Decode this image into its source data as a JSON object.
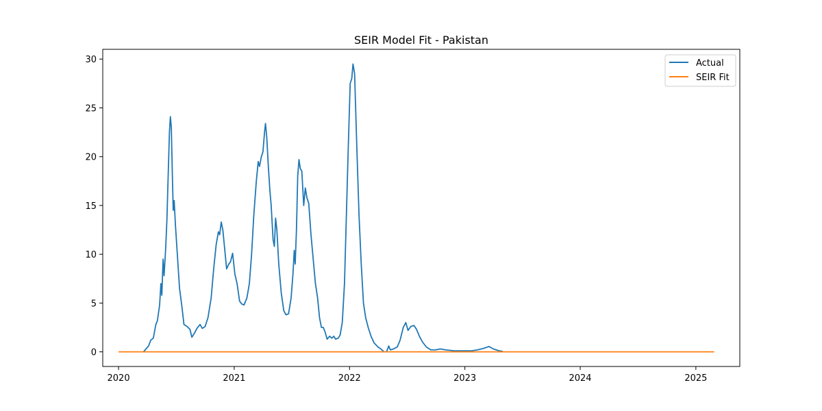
{
  "chart_data": {
    "type": "line",
    "title": "SEIR Model Fit - Pakistan",
    "xlabel": "",
    "ylabel": "",
    "x_axis": {
      "type": "date",
      "min": "2019-11-12",
      "max": "2025-05-20",
      "ticks": [
        "2020-01-01",
        "2021-01-01",
        "2022-01-01",
        "2023-01-01",
        "2024-01-01",
        "2025-01-01"
      ],
      "tick_labels": [
        "2020",
        "2021",
        "2022",
        "2023",
        "2024",
        "2025"
      ]
    },
    "y_axis": {
      "min": -1.5,
      "max": 31,
      "ticks": [
        0,
        5,
        10,
        15,
        20,
        25,
        30
      ],
      "tick_labels": [
        "0",
        "5",
        "10",
        "15",
        "20",
        "25",
        "30"
      ]
    },
    "grid": false,
    "legend": {
      "placement": "top-right",
      "entries": [
        "Actual",
        "SEIR Fit"
      ]
    },
    "series": [
      {
        "name": "Actual",
        "color": "#1f77b4",
        "points": [
          [
            "2020-03-20",
            0.0
          ],
          [
            "2020-03-28",
            0.3
          ],
          [
            "2020-04-05",
            0.6
          ],
          [
            "2020-04-12",
            1.2
          ],
          [
            "2020-04-20",
            1.4
          ],
          [
            "2020-04-28",
            2.8
          ],
          [
            "2020-05-03",
            3.2
          ],
          [
            "2020-05-10",
            4.8
          ],
          [
            "2020-05-14",
            7.0
          ],
          [
            "2020-05-17",
            5.8
          ],
          [
            "2020-05-21",
            9.5
          ],
          [
            "2020-05-24",
            7.8
          ],
          [
            "2020-05-29",
            10.5
          ],
          [
            "2020-06-02",
            13.5
          ],
          [
            "2020-06-06",
            18.0
          ],
          [
            "2020-06-10",
            22.5
          ],
          [
            "2020-06-13",
            24.1
          ],
          [
            "2020-06-16",
            23.0
          ],
          [
            "2020-06-19",
            18.5
          ],
          [
            "2020-06-22",
            14.5
          ],
          [
            "2020-06-25",
            15.5
          ],
          [
            "2020-06-29",
            13.0
          ],
          [
            "2020-07-05",
            10.0
          ],
          [
            "2020-07-12",
            6.5
          ],
          [
            "2020-07-20",
            4.5
          ],
          [
            "2020-07-26",
            2.8
          ],
          [
            "2020-08-05",
            2.6
          ],
          [
            "2020-08-14",
            2.3
          ],
          [
            "2020-08-20",
            1.5
          ],
          [
            "2020-08-28",
            1.9
          ],
          [
            "2020-09-05",
            2.4
          ],
          [
            "2020-09-15",
            2.8
          ],
          [
            "2020-09-22",
            2.4
          ],
          [
            "2020-10-01",
            2.6
          ],
          [
            "2020-10-10",
            3.5
          ],
          [
            "2020-10-20",
            5.5
          ],
          [
            "2020-10-28",
            8.5
          ],
          [
            "2020-11-05",
            11.0
          ],
          [
            "2020-11-12",
            12.3
          ],
          [
            "2020-11-16",
            12.0
          ],
          [
            "2020-11-21",
            13.3
          ],
          [
            "2020-11-26",
            12.5
          ],
          [
            "2020-12-02",
            10.5
          ],
          [
            "2020-12-08",
            8.5
          ],
          [
            "2020-12-15",
            9.0
          ],
          [
            "2020-12-20",
            9.2
          ],
          [
            "2020-12-27",
            10.1
          ],
          [
            "2021-01-03",
            8.0
          ],
          [
            "2021-01-10",
            7.0
          ],
          [
            "2021-01-18",
            5.2
          ],
          [
            "2021-01-25",
            4.9
          ],
          [
            "2021-02-01",
            4.8
          ],
          [
            "2021-02-10",
            5.5
          ],
          [
            "2021-02-18",
            7.0
          ],
          [
            "2021-02-25",
            10.0
          ],
          [
            "2021-03-04",
            14.0
          ],
          [
            "2021-03-12",
            17.5
          ],
          [
            "2021-03-18",
            19.5
          ],
          [
            "2021-03-22",
            19.0
          ],
          [
            "2021-03-28",
            20.0
          ],
          [
            "2021-04-02",
            20.5
          ],
          [
            "2021-04-07",
            22.5
          ],
          [
            "2021-04-10",
            23.4
          ],
          [
            "2021-04-14",
            22.0
          ],
          [
            "2021-04-19",
            19.0
          ],
          [
            "2021-04-24",
            16.5
          ],
          [
            "2021-04-28",
            15.0
          ],
          [
            "2021-05-04",
            11.5
          ],
          [
            "2021-05-08",
            10.8
          ],
          [
            "2021-05-12",
            13.7
          ],
          [
            "2021-05-16",
            12.5
          ],
          [
            "2021-05-22",
            9.0
          ],
          [
            "2021-05-30",
            6.0
          ],
          [
            "2021-06-07",
            4.2
          ],
          [
            "2021-06-14",
            3.8
          ],
          [
            "2021-06-22",
            3.9
          ],
          [
            "2021-06-30",
            5.5
          ],
          [
            "2021-07-06",
            8.0
          ],
          [
            "2021-07-10",
            10.4
          ],
          [
            "2021-07-13",
            9.0
          ],
          [
            "2021-07-17",
            12.5
          ],
          [
            "2021-07-21",
            18.0
          ],
          [
            "2021-07-25",
            19.7
          ],
          [
            "2021-07-29",
            18.8
          ],
          [
            "2021-08-03",
            18.5
          ],
          [
            "2021-08-09",
            15.0
          ],
          [
            "2021-08-14",
            16.8
          ],
          [
            "2021-08-19",
            15.8
          ],
          [
            "2021-08-25",
            15.2
          ],
          [
            "2021-09-01",
            12.0
          ],
          [
            "2021-09-08",
            9.5
          ],
          [
            "2021-09-15",
            7.0
          ],
          [
            "2021-09-22",
            5.5
          ],
          [
            "2021-09-28",
            3.5
          ],
          [
            "2021-10-04",
            2.5
          ],
          [
            "2021-10-10",
            2.5
          ],
          [
            "2021-10-16",
            2.0
          ],
          [
            "2021-10-22",
            1.3
          ],
          [
            "2021-10-30",
            1.6
          ],
          [
            "2021-11-06",
            1.4
          ],
          [
            "2021-11-12",
            1.6
          ],
          [
            "2021-11-18",
            1.3
          ],
          [
            "2021-11-26",
            1.4
          ],
          [
            "2021-12-02",
            1.7
          ],
          [
            "2021-12-09",
            3.0
          ],
          [
            "2021-12-16",
            7.0
          ],
          [
            "2021-12-22",
            14.0
          ],
          [
            "2021-12-28",
            21.0
          ],
          [
            "2022-01-03",
            27.5
          ],
          [
            "2022-01-08",
            28.0
          ],
          [
            "2022-01-12",
            29.5
          ],
          [
            "2022-01-17",
            28.5
          ],
          [
            "2022-01-24",
            21.0
          ],
          [
            "2022-01-31",
            14.0
          ],
          [
            "2022-02-07",
            9.0
          ],
          [
            "2022-02-14",
            5.0
          ],
          [
            "2022-02-21",
            3.5
          ],
          [
            "2022-03-01",
            2.5
          ],
          [
            "2022-03-10",
            1.6
          ],
          [
            "2022-03-20",
            0.9
          ],
          [
            "2022-04-01",
            0.5
          ],
          [
            "2022-04-10",
            0.3
          ],
          [
            "2022-04-20",
            0.0
          ],
          [
            "2022-04-28",
            0.0
          ],
          [
            "2022-05-05",
            0.6
          ],
          [
            "2022-05-10",
            0.2
          ],
          [
            "2022-05-20",
            0.3
          ],
          [
            "2022-06-01",
            0.5
          ],
          [
            "2022-06-10",
            1.2
          ],
          [
            "2022-06-20",
            2.5
          ],
          [
            "2022-06-28",
            3.0
          ],
          [
            "2022-07-05",
            2.2
          ],
          [
            "2022-07-14",
            2.6
          ],
          [
            "2022-07-24",
            2.7
          ],
          [
            "2022-08-01",
            2.3
          ],
          [
            "2022-08-10",
            1.6
          ],
          [
            "2022-08-20",
            1.0
          ],
          [
            "2022-09-01",
            0.5
          ],
          [
            "2022-09-15",
            0.2
          ],
          [
            "2022-10-01",
            0.2
          ],
          [
            "2022-10-15",
            0.3
          ],
          [
            "2022-11-01",
            0.2
          ],
          [
            "2022-12-01",
            0.1
          ],
          [
            "2023-01-01",
            0.1
          ],
          [
            "2023-01-20",
            0.1
          ],
          [
            "2023-02-10",
            0.2
          ],
          [
            "2023-03-01",
            0.35
          ],
          [
            "2023-03-18",
            0.55
          ],
          [
            "2023-04-01",
            0.3
          ],
          [
            "2023-04-20",
            0.1
          ],
          [
            "2023-05-01",
            0.05
          ]
        ]
      },
      {
        "name": "SEIR Fit",
        "color": "#ff7f0e",
        "points": [
          [
            "2020-01-01",
            0
          ],
          [
            "2025-02-28",
            0
          ]
        ]
      }
    ]
  }
}
